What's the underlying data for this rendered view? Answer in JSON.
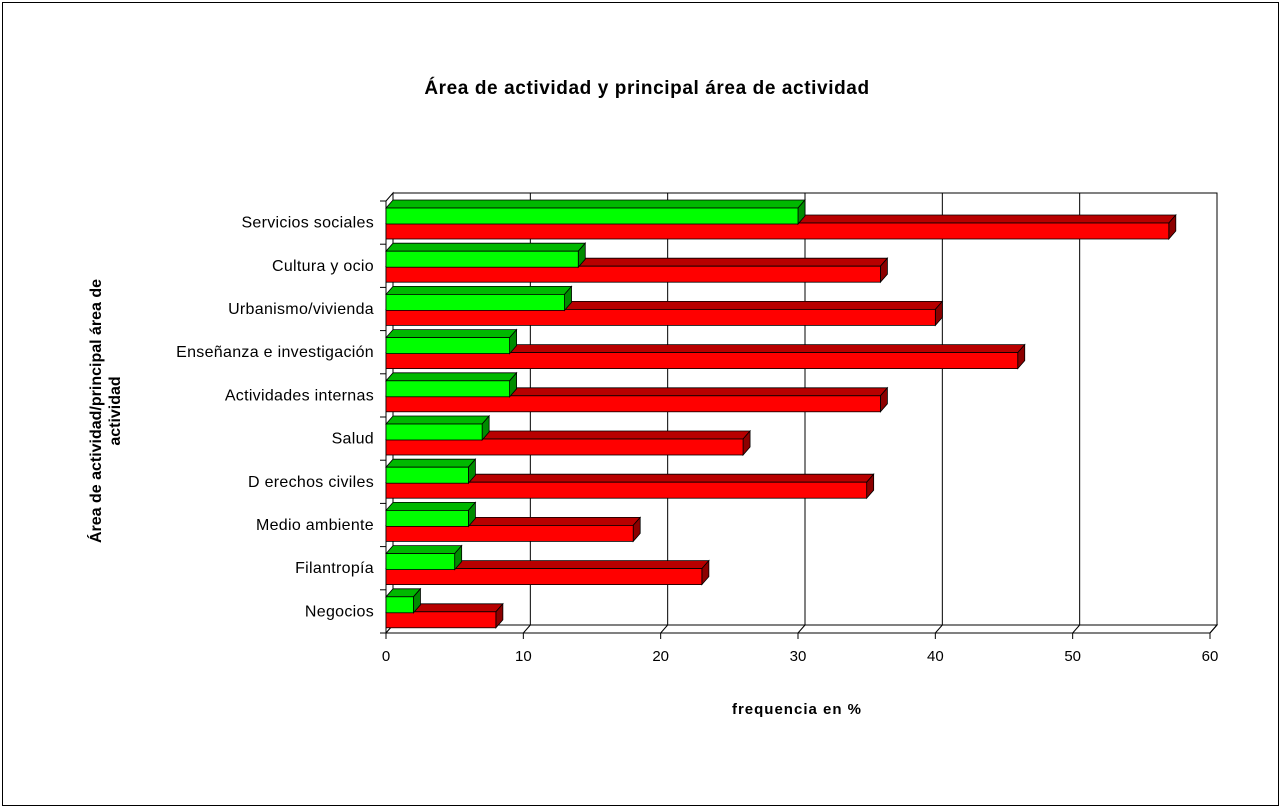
{
  "chart_data": {
    "type": "bar",
    "orientation": "horizontal",
    "style": "3d",
    "title": "Área de actividad y principal área de actividad",
    "xlabel": "frequencia en %",
    "ylabel_lines": [
      "Área de actividad/principal área de",
      "actividad"
    ],
    "xlim": [
      0,
      60
    ],
    "xticks": [
      "0",
      "10",
      "20",
      "30",
      "40",
      "50",
      "60"
    ],
    "grid": true,
    "legend": "none",
    "categories": [
      "Servicios sociales",
      "Cultura y ocio",
      "Urbanismo/vivienda",
      "Enseñanza e investigación",
      "Actividades internas",
      "Salud",
      "D erechos civiles",
      "Medio ambiente",
      "Filantropía",
      "Negocios"
    ],
    "series": [
      {
        "color": "#00ff00",
        "values": [
          30,
          14,
          13,
          9,
          9,
          7,
          6,
          6,
          5,
          2
        ]
      },
      {
        "color": "#ff0000",
        "values": [
          57,
          36,
          40,
          46,
          36,
          26,
          35,
          18,
          23,
          8
        ]
      }
    ]
  }
}
